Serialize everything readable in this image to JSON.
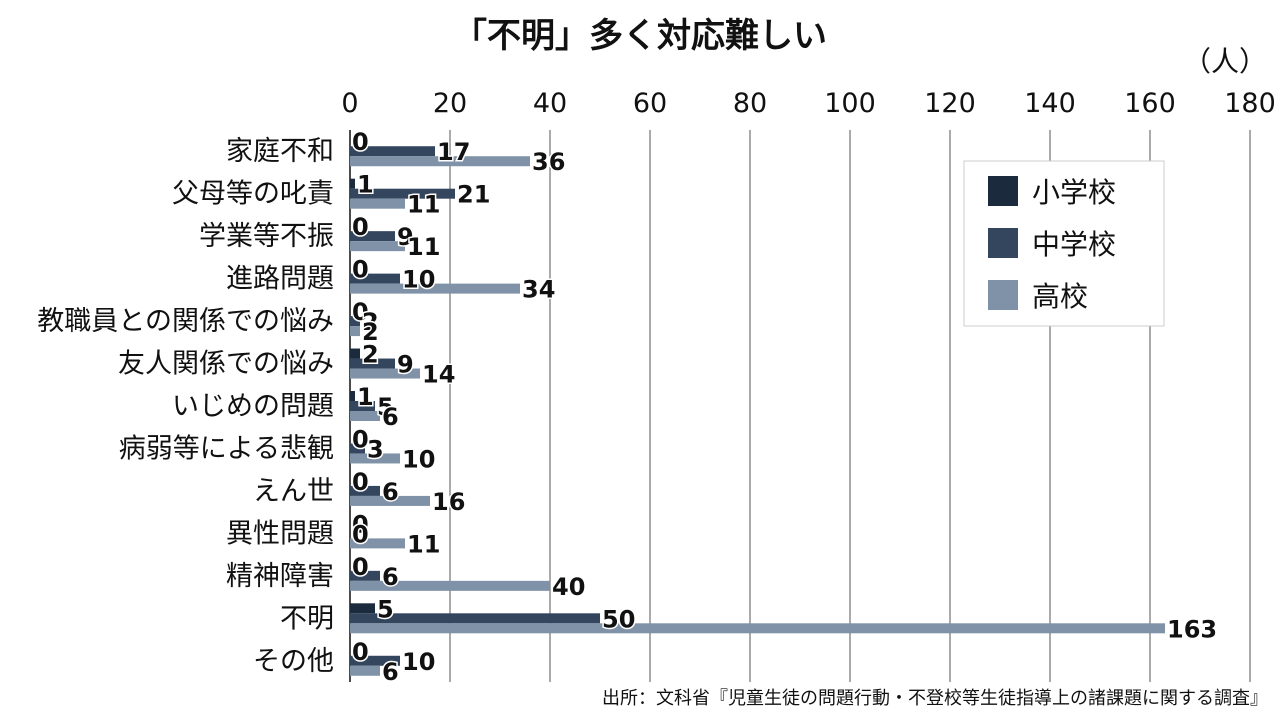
{
  "chart_data": {
    "type": "bar",
    "orientation": "horizontal",
    "title": "「不明」多く対応難しい",
    "unit_label": "（人）",
    "xlim": [
      0,
      180
    ],
    "x_ticks": [
      "0",
      "20",
      "40",
      "60",
      "80",
      "100",
      "120",
      "140",
      "160",
      "180"
    ],
    "grid": true,
    "legend_position": "top-right",
    "categories": [
      "家庭不和",
      "父母等の叱責",
      "学業等不振",
      "進路問題",
      "教職員との関係での悩み",
      "友人関係での悩み",
      "いじめの問題",
      "病弱等による悲観",
      "えん世",
      "異性問題",
      "精神障害",
      "不明",
      "その他"
    ],
    "series": [
      {
        "name": "小学校",
        "color": "#1c2a3e",
        "values": [
          0,
          1,
          0,
          0,
          0,
          2,
          1,
          0,
          0,
          0,
          0,
          5,
          0
        ]
      },
      {
        "name": "中学校",
        "color": "#34465e",
        "values": [
          17,
          21,
          9,
          10,
          2,
          9,
          5,
          3,
          6,
          0,
          6,
          50,
          10
        ]
      },
      {
        "name": "高校",
        "color": "#7f92a8",
        "values": [
          36,
          11,
          11,
          34,
          2,
          14,
          6,
          10,
          16,
          11,
          40,
          163,
          6
        ]
      }
    ],
    "source": "出所：文科省『児童生徒の問題行動・不登校等生徒指導上の諸課題に関する調査』"
  }
}
